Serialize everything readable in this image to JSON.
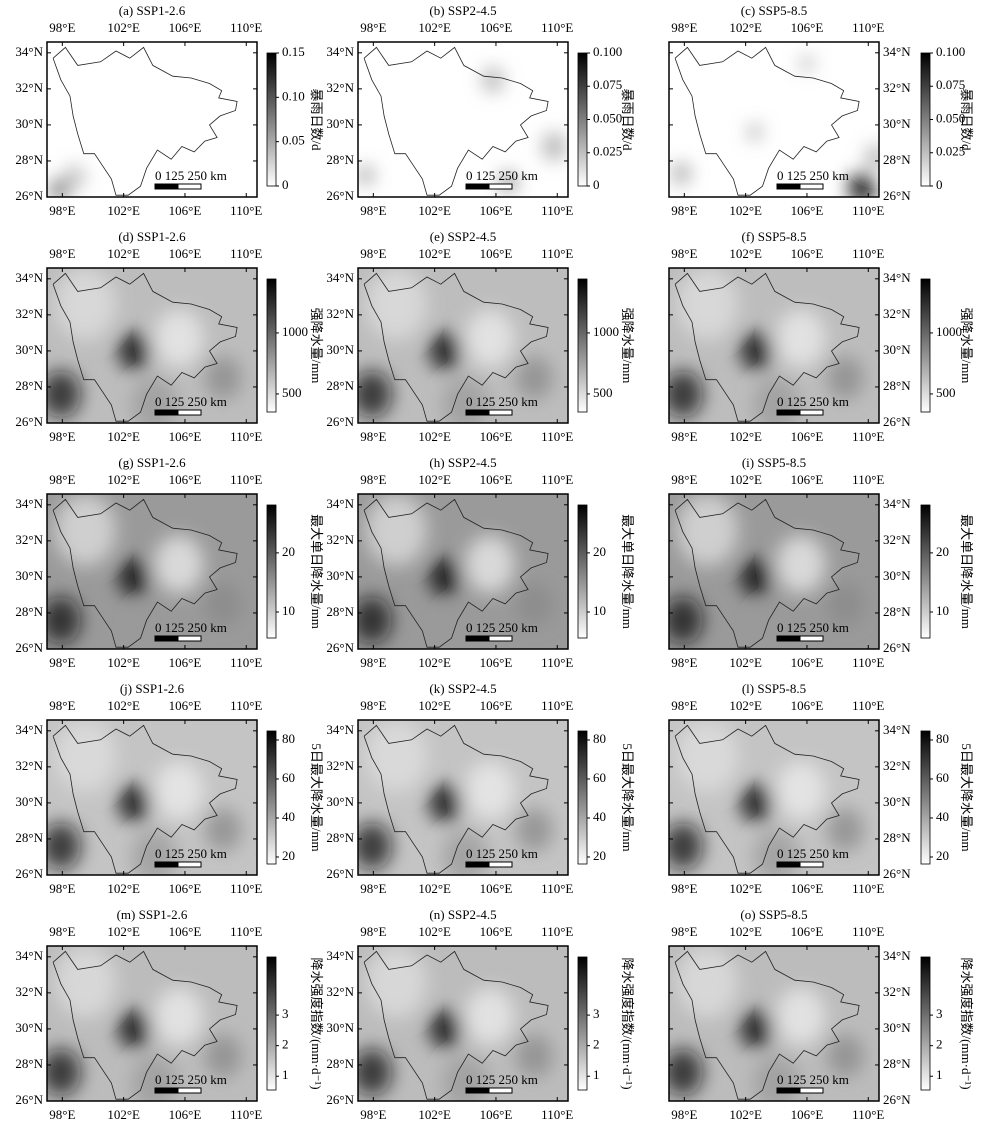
{
  "lon_lim": [
    97.0,
    110.7
  ],
  "lat_lim": [
    26,
    34.6
  ],
  "lon_ticks": [
    {
      "value": 98,
      "label": "98°E"
    },
    {
      "value": 102,
      "label": "102°E"
    },
    {
      "value": 106,
      "label": "106°E"
    },
    {
      "value": 110,
      "label": "110°E"
    }
  ],
  "lat_ticks": [
    {
      "value": 26,
      "label": "26°N"
    },
    {
      "value": 28,
      "label": "28°N"
    },
    {
      "value": 30,
      "label": "30°N"
    },
    {
      "value": 32,
      "label": "32°N"
    },
    {
      "value": 34,
      "label": "34°N"
    }
  ],
  "scale_label": "0 125 250 km",
  "rows": [
    {
      "colorbar_label": "暴雨日数/d",
      "panels": [
        {
          "title": "(a) SSP1-2.6",
          "cbar_lim": [
            0,
            0.15
          ],
          "cbar_ticks": [
            0,
            0.05,
            {
              "value": 0.1,
              "label": "0.10"
            },
            0.15
          ]
        },
        {
          "title": "(b) SSP2-4.5",
          "cbar_lim": [
            0,
            0.1
          ],
          "cbar_ticks": [
            0,
            0.025,
            {
              "value": 0.05,
              "label": "0.050"
            },
            0.075,
            {
              "value": 0.1,
              "label": "0.100"
            }
          ]
        },
        {
          "title": "(c) SSP5-8.5",
          "cbar_lim": [
            0,
            0.1
          ],
          "cbar_ticks": [
            0,
            0.025,
            {
              "value": 0.05,
              "label": "0.050"
            },
            0.075,
            {
              "value": 0.1,
              "label": "0.100"
            }
          ]
        }
      ]
    },
    {
      "colorbar_label": "强降水量/mm",
      "panels": [
        {
          "title": "(d) SSP1-2.6",
          "cbar_lim": [
            352,
            1442
          ],
          "cbar_ticks": [
            500,
            1000
          ]
        },
        {
          "title": "(e) SSP2-4.5",
          "cbar_lim": [
            352,
            1442
          ],
          "cbar_ticks": [
            500,
            1000
          ]
        },
        {
          "title": "(f) SSP5-8.5",
          "cbar_lim": [
            352,
            1442
          ],
          "cbar_ticks": [
            500,
            1000
          ]
        }
      ]
    },
    {
      "colorbar_label": "最大单日降水量/mm",
      "panels": [
        {
          "title": "(g) SSP1-2.6",
          "cbar_lim": [
            5.6,
            28.1
          ],
          "cbar_ticks": [
            10,
            20
          ]
        },
        {
          "title": "(h) SSP2-4.5",
          "cbar_lim": [
            5.6,
            28.1
          ],
          "cbar_ticks": [
            10,
            20
          ]
        },
        {
          "title": "(i) SSP5-8.5",
          "cbar_lim": [
            5.6,
            28.1
          ],
          "cbar_ticks": [
            10,
            20
          ]
        }
      ]
    },
    {
      "colorbar_label": "5日最大降水量/mm",
      "panels": [
        {
          "title": "(j) SSP1-2.6",
          "cbar_lim": [
            16.4,
            84.6
          ],
          "cbar_ticks": [
            20,
            40,
            60,
            80
          ]
        },
        {
          "title": "(k) SSP2-4.5",
          "cbar_lim": [
            16.4,
            84.6
          ],
          "cbar_ticks": [
            20,
            40,
            60,
            80
          ]
        },
        {
          "title": "(l) SSP5-8.5",
          "cbar_lim": [
            16.4,
            84.6
          ],
          "cbar_ticks": [
            20,
            40,
            60,
            80
          ]
        }
      ]
    },
    {
      "colorbar_label": "降水强度指数/(mm·d⁻¹)",
      "panels": [
        {
          "title": "(m) SSP1-2.6",
          "cbar_lim": [
            0.55,
            4.9
          ],
          "cbar_ticks": [
            1,
            2,
            3
          ]
        },
        {
          "title": "(n) SSP2-4.5",
          "cbar_lim": [
            0.55,
            4.9
          ],
          "cbar_ticks": [
            1,
            2,
            3
          ]
        },
        {
          "title": "(o) SSP5-8.5",
          "cbar_lim": [
            0.55,
            4.9
          ],
          "cbar_ticks": [
            1,
            2,
            3
          ]
        }
      ]
    }
  ]
}
